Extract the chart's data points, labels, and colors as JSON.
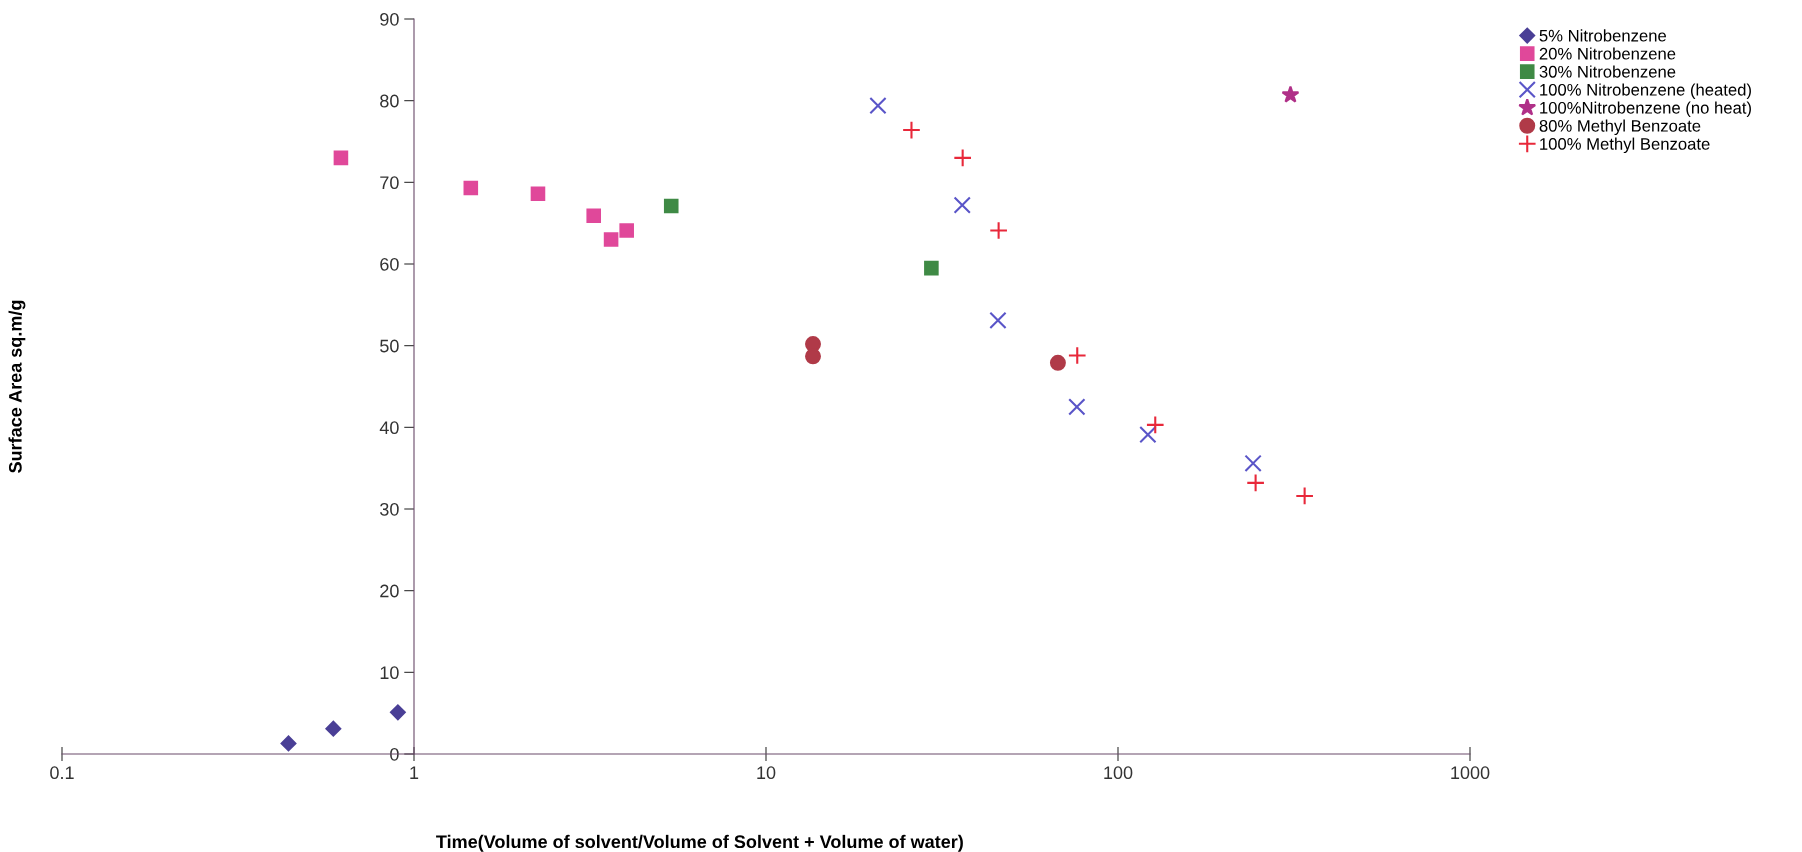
{
  "chart_data": {
    "type": "scatter",
    "xlabel": "Time(Volume of solvent/Volume of Solvent + Volume of water)",
    "ylabel": "Surface Area sq.m/g",
    "log": "x",
    "xlim": [
      0.1,
      1000
    ],
    "xticks": [
      0.1,
      1,
      10,
      100,
      1000
    ],
    "ylim": [
      0,
      90
    ],
    "yticks": [
      0,
      10,
      20,
      30,
      40,
      50,
      60,
      70,
      80,
      90
    ],
    "grid": false,
    "legend": "top right",
    "series": [
      {
        "name": "5% Nitrobenzene",
        "color": "#4a3f96",
        "marker": "diamond",
        "x": [
          0.44,
          0.59,
          0.9
        ],
        "values": [
          1.3,
          3.1,
          5.1
        ]
      },
      {
        "name": "20% Nitrobenzene",
        "color": "#e0489a",
        "marker": "square",
        "x": [
          0.62,
          1.45,
          2.25,
          3.24,
          3.63,
          4.02
        ],
        "values": [
          73.0,
          69.3,
          68.6,
          65.9,
          63.0,
          64.1
        ]
      },
      {
        "name": "30% Nitrobenzene",
        "color": "#3f8a45",
        "marker": "square",
        "x": [
          5.38,
          29.5
        ],
        "values": [
          67.1,
          59.5
        ]
      },
      {
        "name": "100% Nitrobenzene (heated)",
        "color": "#5a55c8",
        "marker": "x",
        "x": [
          20.8,
          36.1,
          45.6,
          76.4,
          121.6,
          242
        ],
        "values": [
          79.4,
          67.2,
          53.1,
          42.5,
          39.1,
          35.6
        ]
      },
      {
        "name": "100%Nitrobenzene (no heat)",
        "color": "#b03088",
        "marker": "star",
        "x": [
          309
        ],
        "values": [
          80.7
        ]
      },
      {
        "name": "80% Methyl Benzoate",
        "color": "#b03a48",
        "marker": "circle",
        "x": [
          13.6,
          13.6,
          67.5
        ],
        "values": [
          50.2,
          48.7,
          47.9
        ]
      },
      {
        "name": "100% Methyl Benzoate",
        "color": "#e8283a",
        "marker": "cross",
        "x": [
          25.9,
          36.2,
          45.8,
          76.6,
          127.6,
          246,
          339
        ],
        "values": [
          76.4,
          73.0,
          64.1,
          48.8,
          40.3,
          33.2,
          31.6
        ]
      }
    ]
  }
}
